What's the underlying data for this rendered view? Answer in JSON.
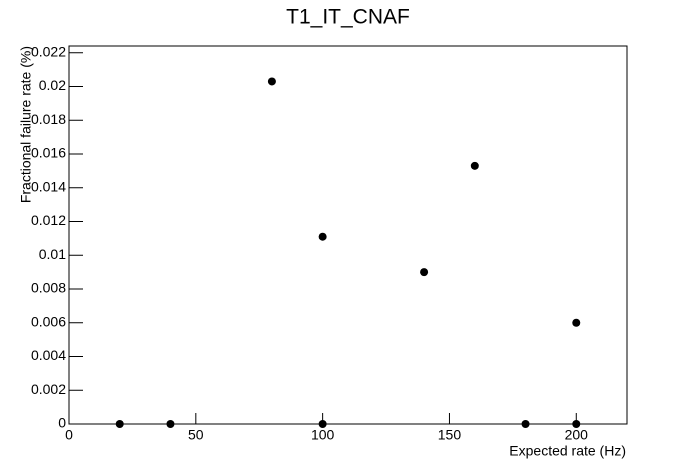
{
  "chart_data": {
    "type": "scatter",
    "title": "T1_IT_CNAF",
    "x_label": "Expected rate (Hz)",
    "y_label": "Fractional failure rate (%)",
    "x": [
      20,
      40,
      80,
      100,
      100,
      140,
      160,
      180,
      200,
      200
    ],
    "values": [
      0,
      0,
      0.0203,
      0.0111,
      0,
      0.009,
      0.0153,
      0,
      0.006,
      0
    ],
    "color": "#000000",
    "xlim": [
      0,
      220
    ],
    "xticks": [
      0,
      50,
      100,
      150,
      200
    ],
    "ylim": [
      0,
      0.0224
    ],
    "yticks": [
      0,
      0.002,
      0.004,
      0.006,
      0.008,
      0.01,
      0.012,
      0.014,
      0.016,
      0.018,
      0.02,
      0.022
    ],
    "grid": false
  }
}
